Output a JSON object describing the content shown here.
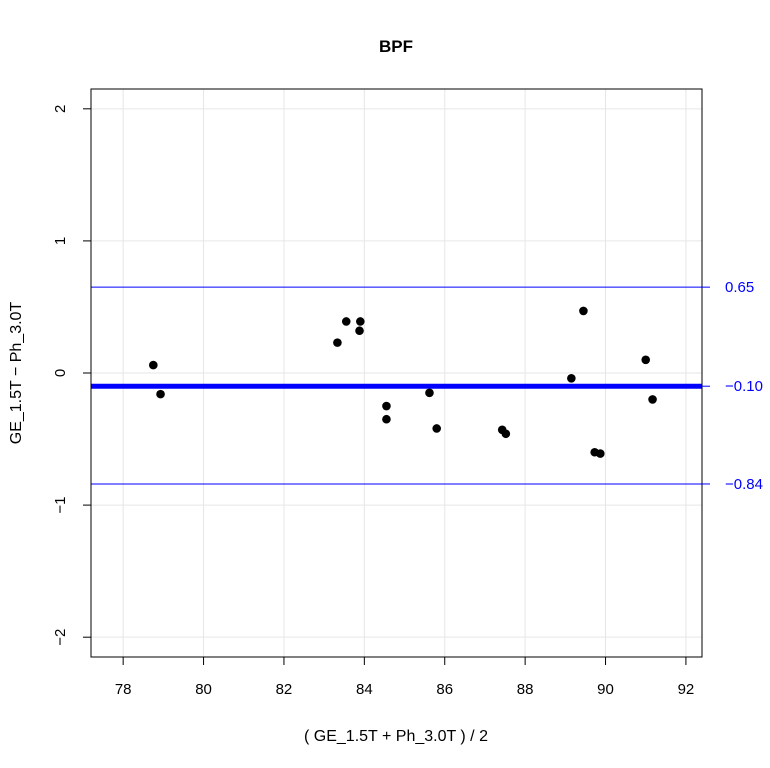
{
  "chart_data": {
    "type": "scatter",
    "title": "BPF",
    "xlabel": "( GE_1.5T + Ph_3.0T ) / 2",
    "ylabel": "GE_1.5T − Ph_3.0T",
    "xlim": [
      77.2,
      92.4
    ],
    "ylim": [
      -2.15,
      2.15
    ],
    "x_ticks": [
      78,
      80,
      82,
      84,
      86,
      88,
      90,
      92
    ],
    "y_ticks": [
      -2,
      -1,
      0,
      1,
      2
    ],
    "x_tick_labels": [
      "78",
      "80",
      "82",
      "84",
      "86",
      "88",
      "90",
      "92"
    ],
    "y_tick_labels": [
      "−2",
      "−1",
      "0",
      "1",
      "2"
    ],
    "grid": true,
    "points": [
      {
        "x": 78.75,
        "y": 0.06
      },
      {
        "x": 78.93,
        "y": -0.16
      },
      {
        "x": 83.33,
        "y": 0.23
      },
      {
        "x": 83.55,
        "y": 0.39
      },
      {
        "x": 83.9,
        "y": 0.39
      },
      {
        "x": 83.88,
        "y": 0.32
      },
      {
        "x": 84.55,
        "y": -0.25
      },
      {
        "x": 84.55,
        "y": -0.35
      },
      {
        "x": 85.62,
        "y": -0.15
      },
      {
        "x": 85.8,
        "y": -0.42
      },
      {
        "x": 87.43,
        "y": -0.43
      },
      {
        "x": 87.52,
        "y": -0.46
      },
      {
        "x": 89.15,
        "y": -0.04
      },
      {
        "x": 89.45,
        "y": 0.47
      },
      {
        "x": 89.73,
        "y": -0.6
      },
      {
        "x": 89.87,
        "y": -0.61
      },
      {
        "x": 91.0,
        "y": 0.1
      },
      {
        "x": 91.17,
        "y": -0.2
      }
    ],
    "reference_lines": [
      {
        "value": 0.65,
        "label": "0.65",
        "style": "thin"
      },
      {
        "value": -0.1,
        "label": "−0.10",
        "style": "thick"
      },
      {
        "value": -0.84,
        "label": "−0.84",
        "style": "thin"
      }
    ],
    "colors": {
      "points": "#000000",
      "reference": "#0000ff",
      "grid": "#e6e6e6",
      "axes": "#000000"
    }
  }
}
